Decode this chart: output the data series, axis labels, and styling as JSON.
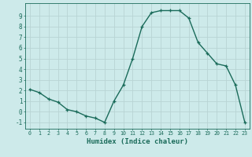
{
  "x": [
    0,
    1,
    2,
    3,
    4,
    5,
    6,
    7,
    8,
    9,
    10,
    11,
    12,
    13,
    14,
    15,
    16,
    17,
    18,
    19,
    20,
    21,
    22,
    23
  ],
  "y": [
    2.1,
    1.8,
    1.2,
    0.9,
    0.2,
    0.0,
    -0.4,
    -0.6,
    -1.0,
    1.0,
    2.5,
    5.0,
    8.0,
    9.3,
    9.5,
    9.5,
    9.5,
    8.8,
    6.5,
    5.5,
    4.5,
    4.3,
    2.5,
    -1.0
  ],
  "line_color": "#1a6b5a",
  "marker": "+",
  "marker_size": 3.5,
  "linewidth": 1.0,
  "xlabel": "Humidex (Indice chaleur)",
  "xlabel_fontsize": 6.5,
  "ylabel_ticks": [
    -1,
    0,
    1,
    2,
    3,
    4,
    5,
    6,
    7,
    8,
    9
  ],
  "xlim": [
    -0.5,
    23.5
  ],
  "ylim": [
    -1.6,
    10.2
  ],
  "bg_color": "#cdeaea",
  "grid_color": "#b8d4d4",
  "tick_color": "#1a6b5a",
  "label_color": "#1a6b5a",
  "xtick_labels": [
    "0",
    "1",
    "2",
    "3",
    "4",
    "5",
    "6",
    "7",
    "8",
    "9",
    "10",
    "11",
    "12",
    "13",
    "14",
    "15",
    "16",
    "17",
    "18",
    "19",
    "20",
    "21",
    "22",
    "23"
  ]
}
